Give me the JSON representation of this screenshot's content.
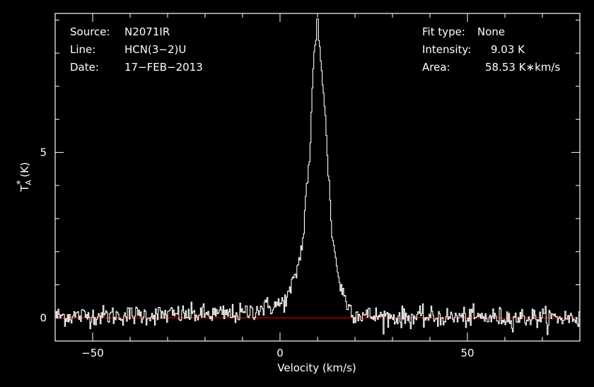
{
  "chart_data": {
    "type": "line",
    "title": "",
    "xlabel": "Velocity (km/s)",
    "ylabel": "T",
    "ylabel_sub": "A",
    "ylabel_sup": "*",
    "ylabel_unit": "(K)",
    "xlim": [
      -60,
      80
    ],
    "ylim": [
      -0.7,
      9.2
    ],
    "x_ticks": [
      -50,
      0,
      50
    ],
    "x_tick_labels": [
      "−50",
      "0",
      "50"
    ],
    "y_ticks": [
      0,
      5
    ],
    "y_tick_labels": [
      "0",
      "5"
    ],
    "grid": false,
    "legend": "none",
    "baseline": 0,
    "series": [
      {
        "peak_velocity": 10,
        "peak_intensity": 9.03,
        "profile_x": [
          -60,
          -10,
          -5,
          0,
          2,
          4,
          6,
          7,
          8,
          9,
          10,
          11,
          12,
          13,
          14,
          16,
          18,
          20,
          25,
          30,
          80
        ],
        "profile_y": [
          0.05,
          0.12,
          0.3,
          0.4,
          0.6,
          1.2,
          2.2,
          3.8,
          5.0,
          7.8,
          8.8,
          7.8,
          6.2,
          4.2,
          2.4,
          1.0,
          0.4,
          0.12,
          0.05,
          0.02,
          0.0
        ],
        "noise_rms": 0.15
      }
    ]
  },
  "info": {
    "left": {
      "source_label": "Source:",
      "source_value": "N2071IR",
      "line_label": "Line:",
      "line_value": "HCN(3−2)U",
      "date_label": "Date:",
      "date_value": "17−FEB−2013"
    },
    "right": {
      "fit_label": "Fit type:",
      "fit_value": "None",
      "intensity_label": "Intensity:",
      "intensity_value": "9.03 K",
      "area_label": "Area:",
      "area_value": "58.53 K∗km/s"
    }
  },
  "colors": {
    "background": "#000000",
    "foreground": "#ffffff",
    "spectrum": "#ffffff",
    "baseline": "#cc0000"
  }
}
